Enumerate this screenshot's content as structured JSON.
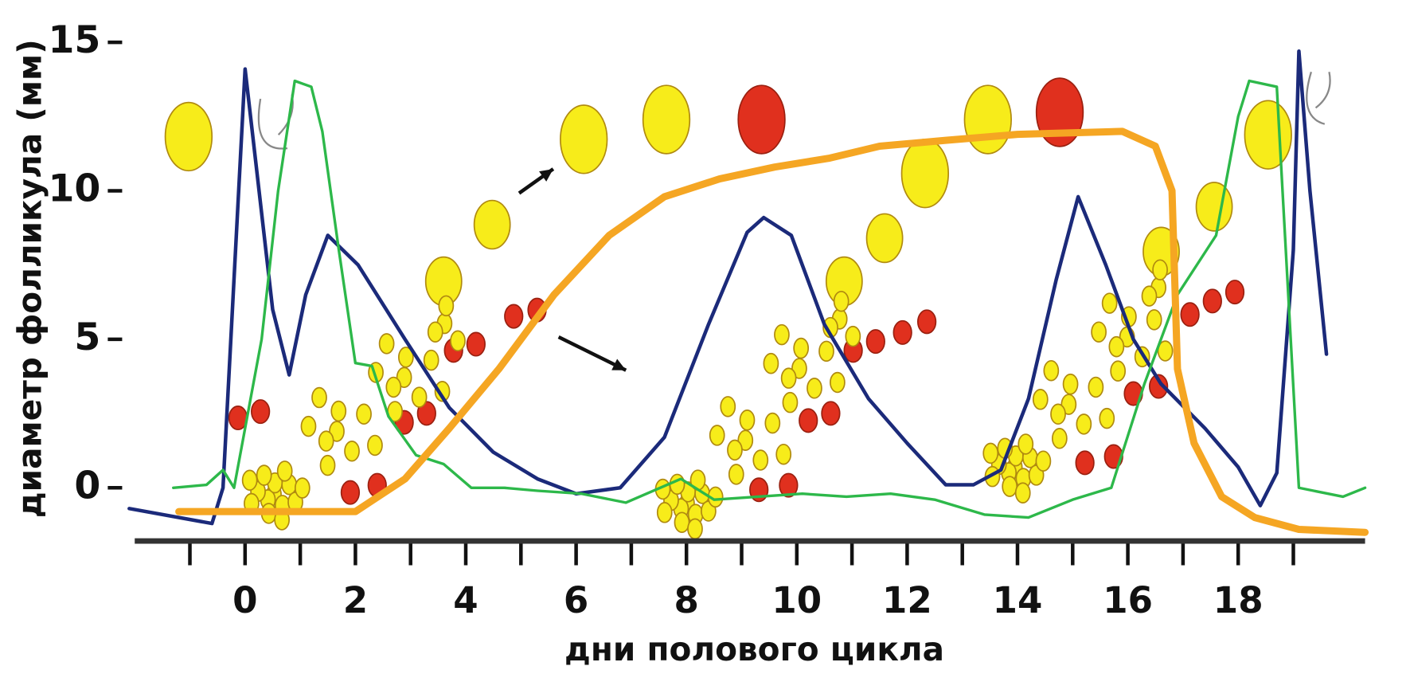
{
  "chart_data": {
    "type": "line",
    "ylabel": "диаметр фолликула (мм)",
    "xlabel": "дни полового цикла",
    "xlim": [
      -2,
      20.3
    ],
    "ylim": [
      -1.7,
      16
    ],
    "xticks": [
      0,
      2,
      4,
      6,
      8,
      10,
      12,
      14,
      16,
      18
    ],
    "xminorticks": [
      -1,
      0,
      1,
      2,
      3,
      4,
      5,
      6,
      7,
      8,
      9,
      10,
      11,
      12,
      13,
      14,
      15,
      16,
      17,
      18,
      19
    ],
    "yticks": [
      0,
      5,
      10,
      15
    ],
    "series": [
      {
        "color": "#1b2a7a",
        "width": 4,
        "x": [
          -2.1,
          -0.6,
          -0.4,
          0,
          0.5,
          0.8,
          1.1,
          1.5,
          2.05,
          2.9,
          3.7,
          4.5,
          5.3,
          6,
          6.8,
          7.6,
          8.4,
          9.1,
          9.4,
          9.9,
          10.5,
          11.3,
          12,
          12.7,
          13.2,
          13.7,
          14.2,
          14.7,
          15.1,
          15.6,
          16.1,
          16.6,
          17.4,
          18,
          18.4,
          18.7,
          19.0,
          19.1,
          19.3,
          19.6
        ],
        "values": [
          -0.7,
          -1.2,
          0,
          14.1,
          6,
          3.8,
          6.5,
          8.5,
          7.5,
          5,
          2.7,
          1.2,
          0.3,
          -0.2,
          0,
          1.7,
          5.5,
          8.6,
          9.1,
          8.5,
          5.5,
          3,
          1.5,
          0.1,
          0.1,
          0.6,
          3,
          7,
          9.8,
          7.5,
          5,
          3.5,
          2,
          0.7,
          -0.6,
          0.5,
          8,
          14.7,
          10,
          4.5
        ]
      },
      {
        "color": "#2db84a",
        "width": 3,
        "x": [
          -1.3,
          -0.7,
          -0.4,
          -0.2,
          0.1,
          0.3,
          0.6,
          0.9,
          1.2,
          1.4,
          1.7,
          2,
          2.3,
          2.6,
          3.1,
          3.6,
          4.1,
          4.7,
          5.3,
          6.1,
          6.9,
          7.9,
          8.5,
          9.3,
          10.1,
          10.9,
          11.7,
          12.5,
          13.4,
          14.2,
          15,
          15.7,
          16.3,
          16.9,
          17.6,
          18,
          18.2,
          18.7,
          19.1,
          19.9,
          20.3
        ],
        "values": [
          0,
          0.1,
          0.6,
          0,
          3,
          5,
          10,
          13.7,
          13.5,
          12,
          8,
          4.2,
          4.1,
          2.4,
          1.1,
          0.8,
          0,
          0,
          -0.1,
          -0.2,
          -0.5,
          0.3,
          -0.4,
          -0.3,
          -0.2,
          -0.3,
          -0.2,
          -0.4,
          -0.9,
          -1.0,
          -0.4,
          0,
          3.5,
          6.5,
          8.5,
          12.5,
          13.7,
          13.5,
          0,
          -0.3,
          0
        ]
      },
      {
        "color": "#f5a623",
        "width": 8,
        "x": [
          -1.2,
          2,
          2.9,
          3.7,
          4.6,
          5.6,
          6.6,
          7.6,
          8.6,
          9.6,
          10.6,
          11.5,
          12.7,
          14,
          15.9,
          16.5,
          16.8,
          16.9,
          17.2,
          17.7,
          18.3,
          19.1,
          20.3
        ],
        "values": [
          -0.8,
          -0.8,
          0.3,
          2,
          4,
          6.5,
          8.5,
          9.8,
          10.4,
          10.8,
          11.1,
          11.5,
          11.7,
          11.9,
          12,
          11.5,
          10,
          4,
          1.5,
          -0.3,
          -1,
          -1.4,
          -1.5
        ]
      }
    ]
  }
}
